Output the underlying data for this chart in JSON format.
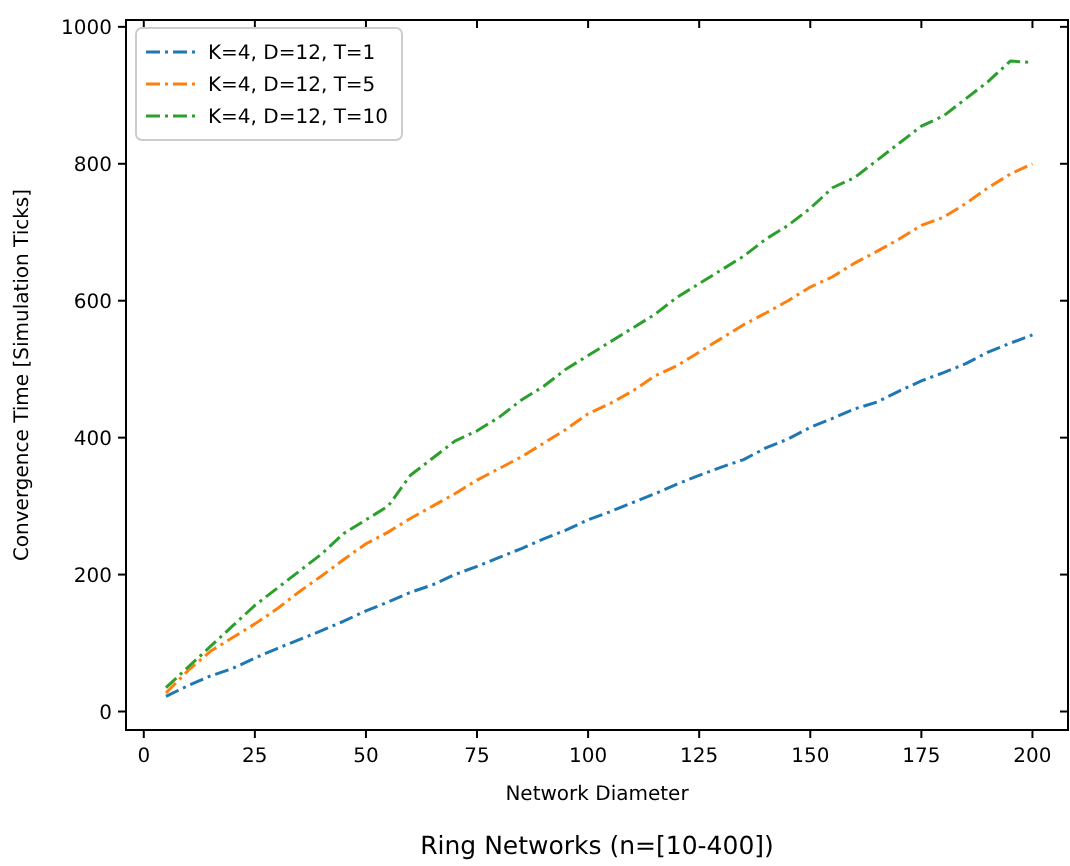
{
  "chart_data": {
    "type": "line",
    "title": "Ring Networks (n=[10-400])",
    "xlabel": "Network Diameter",
    "ylabel": "Convergence Time [Simulation Ticks]",
    "x": [
      5,
      10,
      15,
      20,
      25,
      30,
      35,
      40,
      45,
      50,
      55,
      60,
      65,
      70,
      75,
      80,
      85,
      90,
      95,
      100,
      105,
      110,
      115,
      120,
      125,
      130,
      135,
      140,
      145,
      150,
      155,
      160,
      165,
      170,
      175,
      180,
      185,
      190,
      195,
      200
    ],
    "series": [
      {
        "name": "K=4, D=12, T=1",
        "color": "#1f77b4",
        "values": [
          22,
          38,
          52,
          63,
          78,
          92,
          105,
          118,
          132,
          147,
          160,
          174,
          185,
          200,
          212,
          225,
          238,
          252,
          265,
          280,
          292,
          305,
          318,
          332,
          345,
          357,
          368,
          385,
          398,
          415,
          428,
          442,
          452,
          468,
          483,
          495,
          508,
          525,
          538,
          550
        ]
      },
      {
        "name": "K=4, D=12, T=5",
        "color": "#ff7f0e",
        "values": [
          27,
          60,
          88,
          108,
          128,
          150,
          175,
          198,
          222,
          245,
          262,
          282,
          300,
          318,
          338,
          355,
          372,
          392,
          412,
          435,
          450,
          468,
          490,
          505,
          525,
          545,
          565,
          582,
          600,
          620,
          635,
          655,
          672,
          690,
          710,
          722,
          742,
          765,
          785,
          800
        ]
      },
      {
        "name": "K=4, D=12, T=10",
        "color": "#2ca02c",
        "values": [
          35,
          65,
          95,
          125,
          155,
          180,
          205,
          230,
          260,
          280,
          300,
          345,
          370,
          395,
          410,
          430,
          455,
          475,
          500,
          520,
          540,
          560,
          580,
          605,
          625,
          645,
          665,
          690,
          710,
          735,
          765,
          780,
          805,
          830,
          855,
          870,
          895,
          920,
          950,
          948
        ]
      }
    ],
    "xlim": [
      -4,
      208
    ],
    "ylim": [
      -27,
      1010
    ],
    "xticks": [
      0,
      25,
      50,
      75,
      100,
      125,
      150,
      175,
      200
    ],
    "yticks": [
      0,
      200,
      400,
      600,
      800,
      1000
    ],
    "legend": "top left",
    "line_style": "dashed",
    "grid": false
  }
}
